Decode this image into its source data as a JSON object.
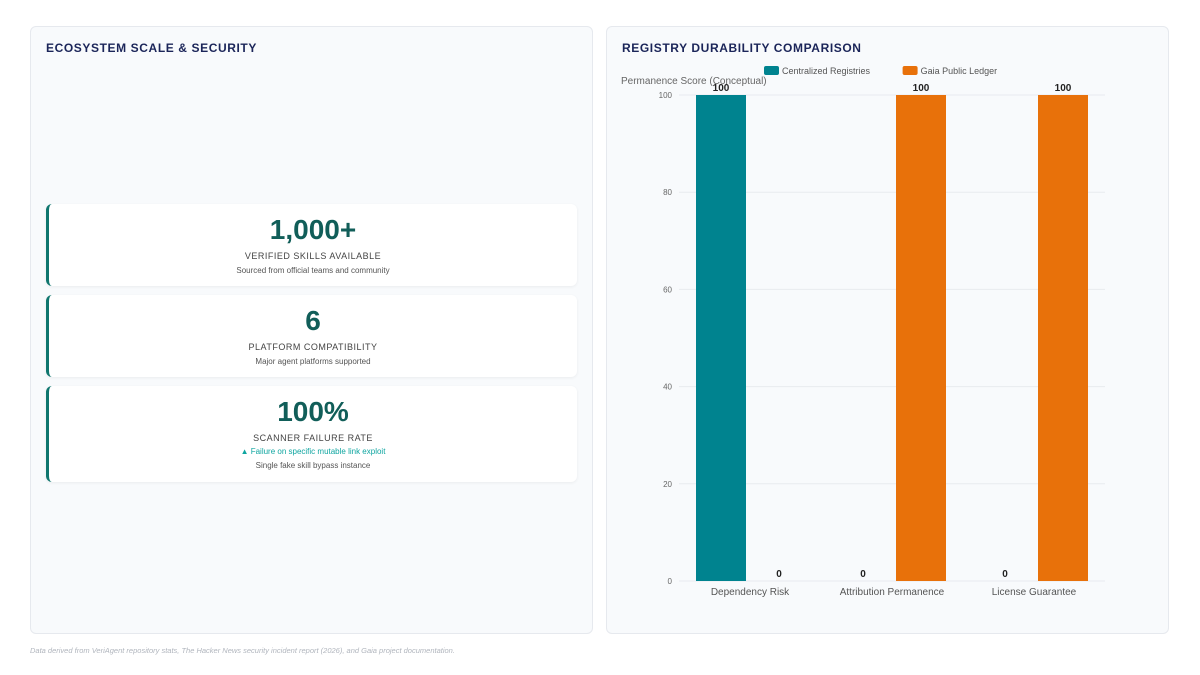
{
  "left_panel": {
    "title": "ECOSYSTEM SCALE & SECURITY",
    "stats": [
      {
        "value": "1,000+",
        "label": "VERIFIED SKILLS AVAILABLE",
        "note": "",
        "desc": "Sourced from official teams and community"
      },
      {
        "value": "6",
        "label": "PLATFORM COMPATIBILITY",
        "note": "",
        "desc": "Major agent platforms supported"
      },
      {
        "value": "100%",
        "label": "SCANNER FAILURE RATE",
        "note": "▲ Failure on specific mutable link exploit",
        "desc": "Single fake skill bypass instance"
      }
    ]
  },
  "right_panel": {
    "title": "REGISTRY DURABILITY COMPARISON"
  },
  "chart_data": {
    "type": "bar",
    "categories": [
      "Dependency Risk",
      "Attribution Permanence",
      "License Guarantee"
    ],
    "series": [
      {
        "name": "Centralized Registries",
        "color": "#00838f",
        "values": [
          100,
          0,
          0
        ]
      },
      {
        "name": "Gaia Public Ledger",
        "color": "#e8710a",
        "values": [
          0,
          100,
          100
        ]
      }
    ],
    "title": "",
    "xlabel": "",
    "ylabel": "Permanence Score (Conceptual)",
    "ylim": [
      0,
      100
    ],
    "yticks": [
      0,
      20,
      40,
      60,
      80,
      100
    ],
    "grid": true,
    "legend": "top-center",
    "data_labels": true
  },
  "footer": {
    "text": "Data derived from VeriAgent repository stats, The Hacker News security incident report (2026), and Gaia project documentation."
  }
}
